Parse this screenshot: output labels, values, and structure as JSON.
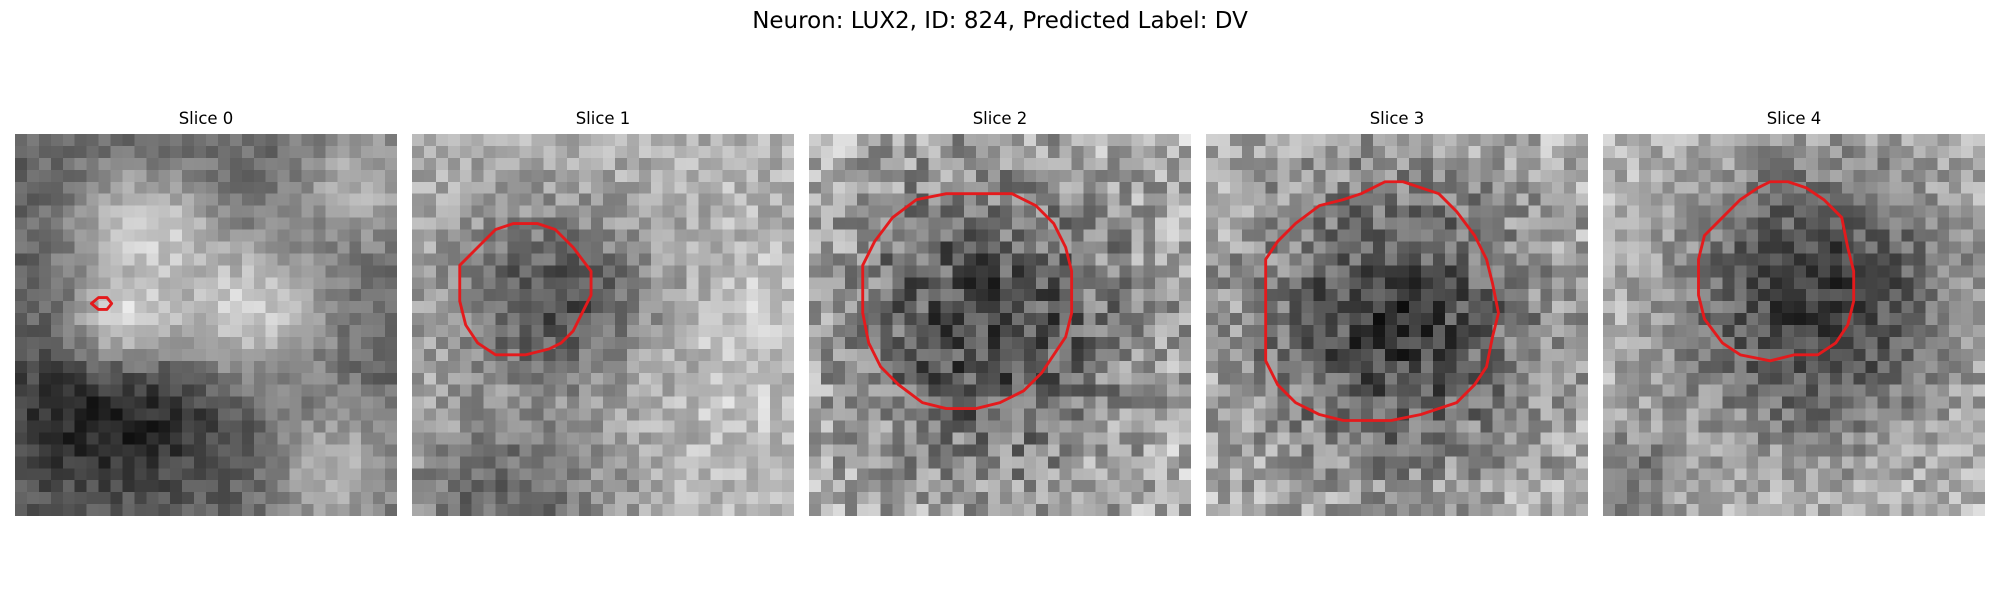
{
  "figure": {
    "suptitle": "Neuron: LUX2, ID: 824, Predicted Label: DV",
    "neuron": "LUX2",
    "id": 824,
    "predicted_label": "DV",
    "contour_color": "#e41a1c",
    "colormap": "gray"
  },
  "slices": [
    {
      "title": "Slice 0"
    },
    {
      "title": "Slice 1"
    },
    {
      "title": "Slice 2"
    },
    {
      "title": "Slice 3"
    },
    {
      "title": "Slice 4"
    }
  ]
}
